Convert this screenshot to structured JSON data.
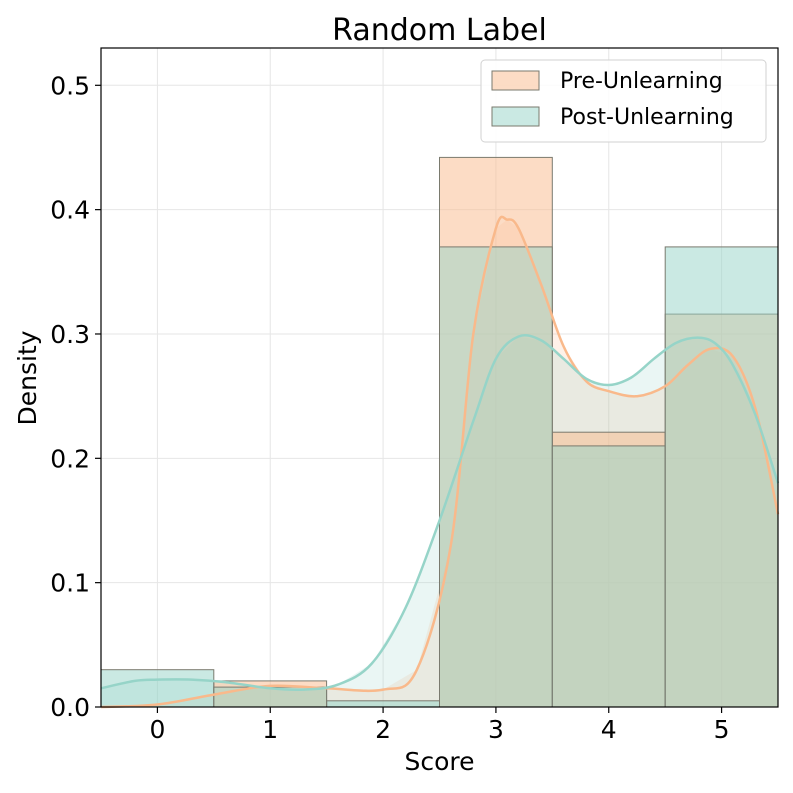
{
  "chart_data": {
    "type": "bar",
    "title": "Random Label",
    "xlabel": "Score",
    "ylabel": "Density",
    "categories": [
      "0",
      "1",
      "2",
      "3",
      "4",
      "5"
    ],
    "x": [
      0,
      1,
      2,
      3,
      4,
      5
    ],
    "xlim": [
      -0.5,
      5.5
    ],
    "ylim": [
      0,
      0.53
    ],
    "yticks": [
      "0.0",
      "0.1",
      "0.2",
      "0.3",
      "0.4",
      "0.5"
    ],
    "grid": true,
    "legend_position": "top-right",
    "series": [
      {
        "name": "Pre-Unlearning",
        "color": "#f9b98b",
        "values": [
          0.0,
          0.021,
          0.0,
          0.442,
          0.221,
          0.316
        ],
        "kde": {
          "x": [
            -0.5,
            0.0,
            0.5,
            1.0,
            1.5,
            2.0,
            2.3,
            2.6,
            2.8,
            3.0,
            3.1,
            3.2,
            3.4,
            3.6,
            3.8,
            4.0,
            4.25,
            4.5,
            4.7,
            4.9,
            5.1,
            5.3,
            5.5
          ],
          "y": [
            0.0,
            0.002,
            0.01,
            0.017,
            0.015,
            0.014,
            0.03,
            0.13,
            0.3,
            0.385,
            0.392,
            0.385,
            0.34,
            0.29,
            0.262,
            0.254,
            0.25,
            0.258,
            0.275,
            0.288,
            0.282,
            0.24,
            0.155
          ]
        }
      },
      {
        "name": "Post-Unlearning",
        "color": "#96d4c8",
        "values": [
          0.03,
          0.016,
          0.005,
          0.37,
          0.21,
          0.37
        ],
        "kde": {
          "x": [
            -0.5,
            -0.2,
            0.0,
            0.3,
            0.6,
            1.0,
            1.3,
            1.6,
            1.9,
            2.2,
            2.5,
            2.8,
            3.0,
            3.2,
            3.4,
            3.6,
            3.8,
            4.0,
            4.2,
            4.4,
            4.6,
            4.8,
            4.95,
            5.1,
            5.3,
            5.5
          ],
          "y": [
            0.015,
            0.021,
            0.022,
            0.022,
            0.02,
            0.015,
            0.014,
            0.018,
            0.035,
            0.08,
            0.15,
            0.23,
            0.28,
            0.298,
            0.295,
            0.28,
            0.264,
            0.259,
            0.265,
            0.28,
            0.293,
            0.297,
            0.292,
            0.275,
            0.235,
            0.18
          ]
        }
      }
    ]
  }
}
